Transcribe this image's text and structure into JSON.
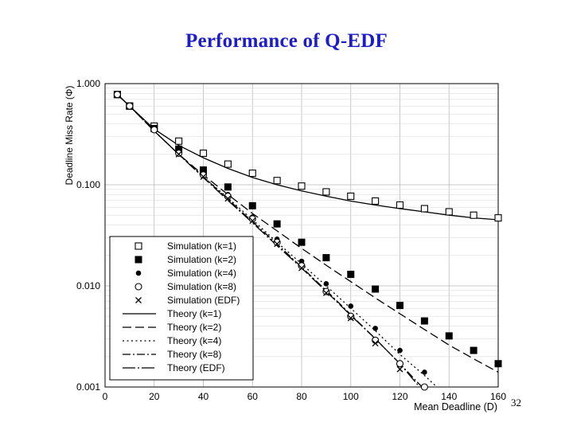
{
  "slide": {
    "title": "Performance of Q-EDF",
    "page_number": "32"
  },
  "chart_data": {
    "type": "line",
    "title": "",
    "xlabel": "Mean Deadline (D)",
    "ylabel": "Deadline Miss Rate (Φ)",
    "xlim": [
      0,
      160
    ],
    "ylim": [
      0.001,
      1.0
    ],
    "yscale": "log",
    "grid": true,
    "legend_position": "bottom-left",
    "x_ticks": [
      "0",
      "20",
      "40",
      "60",
      "80",
      "100",
      "120",
      "140",
      "160"
    ],
    "y_ticks": [
      "0.001",
      "0.010",
      "0.100",
      "1.000"
    ],
    "simulation_series": [
      {
        "name": "Simulation (k=1)",
        "marker": "open-square",
        "x": [
          5,
          10,
          20,
          30,
          40,
          50,
          60,
          70,
          80,
          90,
          100,
          110,
          120,
          130,
          140,
          150,
          160
        ],
        "y": [
          0.78,
          0.6,
          0.38,
          0.27,
          0.205,
          0.16,
          0.13,
          0.11,
          0.097,
          0.085,
          0.077,
          0.069,
          0.063,
          0.058,
          0.054,
          0.05,
          0.047
        ]
      },
      {
        "name": "Simulation (k=2)",
        "marker": "filled-square",
        "x": [
          5,
          10,
          20,
          30,
          40,
          50,
          60,
          70,
          80,
          90,
          100,
          110,
          120,
          130,
          140,
          150,
          160
        ],
        "y": [
          0.78,
          0.6,
          0.36,
          0.225,
          0.14,
          0.095,
          0.062,
          0.041,
          0.027,
          0.019,
          0.013,
          0.0093,
          0.0064,
          0.0045,
          0.0032,
          0.0023,
          0.0017
        ]
      },
      {
        "name": "Simulation (k=4)",
        "marker": "filled-circle",
        "x": [
          5,
          10,
          20,
          30,
          40,
          50,
          60,
          70,
          80,
          90,
          100,
          110,
          120,
          130
        ],
        "y": [
          0.78,
          0.6,
          0.35,
          0.21,
          0.13,
          0.08,
          0.048,
          0.029,
          0.0175,
          0.0105,
          0.0063,
          0.0038,
          0.0023,
          0.0014
        ]
      },
      {
        "name": "Simulation (k=8)",
        "marker": "open-circle",
        "x": [
          5,
          10,
          20,
          30,
          40,
          50,
          60,
          70,
          80,
          90,
          100,
          110,
          120,
          130
        ],
        "y": [
          0.78,
          0.6,
          0.35,
          0.205,
          0.125,
          0.077,
          0.046,
          0.027,
          0.0158,
          0.0088,
          0.005,
          0.0029,
          0.0017,
          0.001
        ]
      },
      {
        "name": "Simulation (EDF)",
        "marker": "cross",
        "x": [
          30,
          40,
          50,
          60,
          70,
          80,
          90,
          100,
          110,
          120
        ],
        "y": [
          0.2,
          0.12,
          0.073,
          0.044,
          0.026,
          0.015,
          0.0085,
          0.0048,
          0.0027,
          0.0015
        ]
      }
    ],
    "theory_series": [
      {
        "name": "Theory (k=1)",
        "dash": "solid",
        "x": [
          5,
          10,
          20,
          30,
          40,
          50,
          60,
          70,
          80,
          90,
          100,
          110,
          120,
          130,
          140,
          150,
          160
        ],
        "y": [
          0.78,
          0.6,
          0.355,
          0.245,
          0.185,
          0.145,
          0.118,
          0.1,
          0.087,
          0.077,
          0.069,
          0.063,
          0.058,
          0.054,
          0.05,
          0.047,
          0.045
        ]
      },
      {
        "name": "Theory (k=2)",
        "dash": "long-dash",
        "x": [
          5,
          10,
          20,
          30,
          40,
          50,
          60,
          70,
          80,
          90,
          100,
          110,
          120,
          130,
          140,
          150,
          160
        ],
        "y": [
          0.78,
          0.6,
          0.34,
          0.2,
          0.125,
          0.08,
          0.052,
          0.035,
          0.0235,
          0.016,
          0.011,
          0.0076,
          0.0053,
          0.0037,
          0.0026,
          0.0019,
          0.0014
        ]
      },
      {
        "name": "Theory (k=4)",
        "dash": "dotted",
        "x": [
          5,
          10,
          20,
          30,
          40,
          50,
          60,
          70,
          80,
          90,
          100,
          110,
          120,
          130,
          135
        ],
        "y": [
          0.78,
          0.6,
          0.34,
          0.2,
          0.12,
          0.074,
          0.045,
          0.027,
          0.0165,
          0.01,
          0.006,
          0.0036,
          0.0021,
          0.0013,
          0.001
        ]
      },
      {
        "name": "Theory (k=8)",
        "dash": "dash-dot",
        "x": [
          5,
          10,
          20,
          30,
          40,
          50,
          60,
          70,
          80,
          90,
          100,
          110,
          120,
          129
        ],
        "y": [
          0.78,
          0.6,
          0.34,
          0.2,
          0.12,
          0.072,
          0.043,
          0.026,
          0.0153,
          0.009,
          0.0052,
          0.003,
          0.0017,
          0.001
        ]
      },
      {
        "name": "Theory (EDF)",
        "dash": "long-dash-dot",
        "x": [
          5,
          10,
          20,
          30,
          40,
          50,
          60,
          70,
          80,
          90,
          100,
          110,
          120,
          128
        ],
        "y": [
          0.78,
          0.6,
          0.34,
          0.2,
          0.118,
          0.07,
          0.042,
          0.025,
          0.015,
          0.0088,
          0.0051,
          0.003,
          0.0017,
          0.001
        ]
      }
    ]
  }
}
